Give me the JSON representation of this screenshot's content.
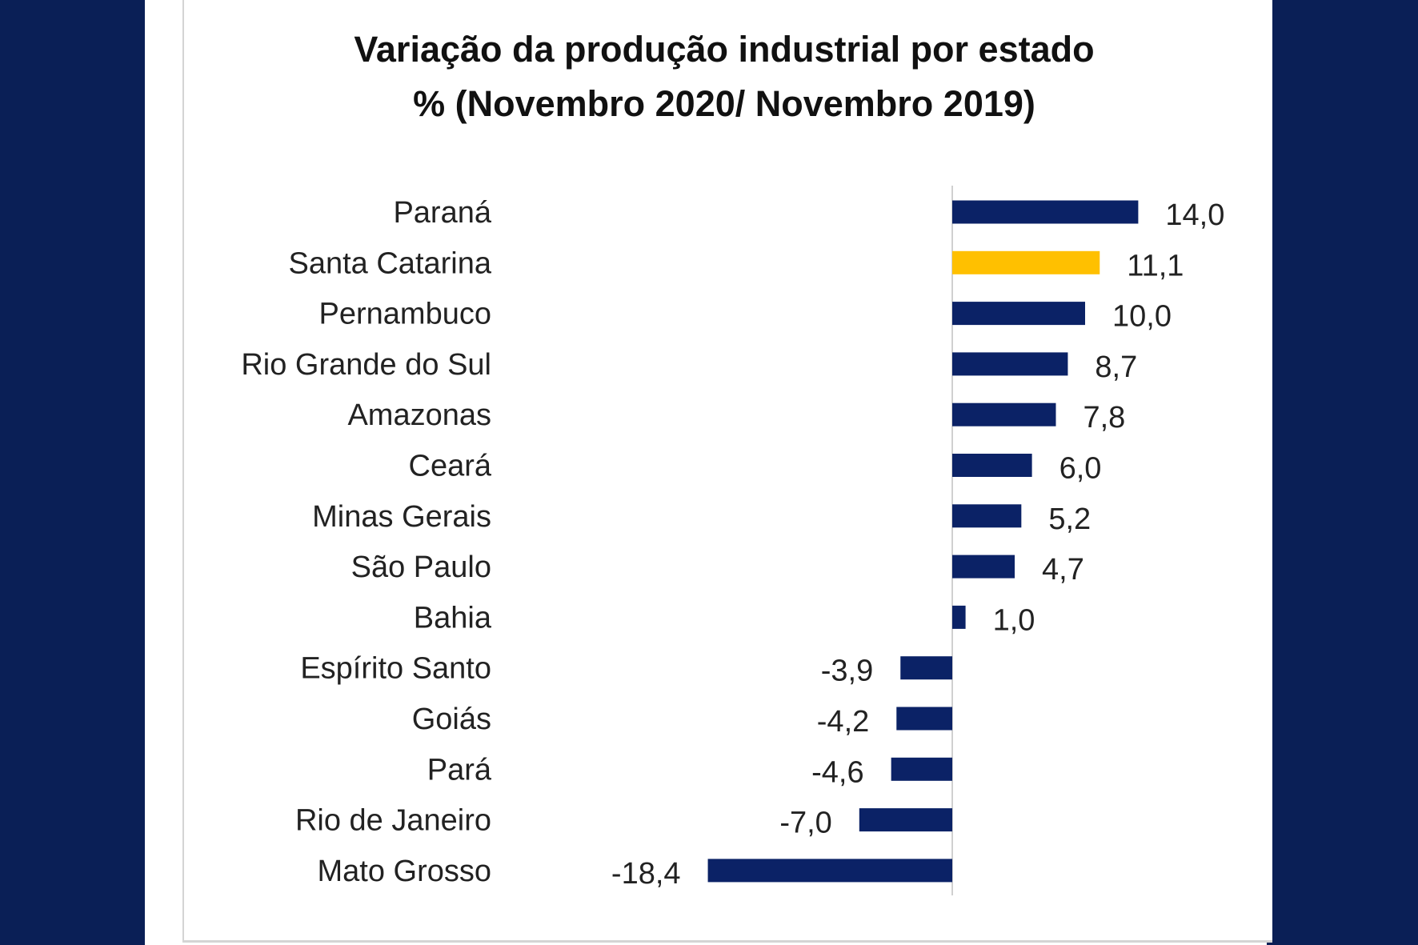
{
  "chart_data": {
    "type": "bar",
    "orientation": "horizontal",
    "title": "Variação da produção industrial por estado",
    "subtitle": "% (Novembro 2020/ Novembro 2019)",
    "categories": [
      "Paraná",
      "Santa Catarina",
      "Pernambuco",
      "Rio Grande do Sul",
      "Amazonas",
      "Ceará",
      "Minas Gerais",
      "São Paulo",
      "Bahia",
      "Espírito Santo",
      "Goiás",
      "Pará",
      "Rio de Janeiro",
      "Mato Grosso"
    ],
    "values": [
      14.0,
      11.1,
      10.0,
      8.7,
      7.8,
      6.0,
      5.2,
      4.7,
      1.0,
      -3.9,
      -4.2,
      -4.6,
      -7.0,
      -18.4
    ],
    "value_labels": [
      "14,0",
      "11,1",
      "10,0",
      "8,7",
      "7,8",
      "6,0",
      "5,2",
      "4,7",
      "1,0",
      "-3,9",
      "-4,2",
      "-4,6",
      "-7,0",
      "-18,4"
    ],
    "highlight_category": "Santa Catarina",
    "colors": {
      "bar": "#0b2266",
      "highlight": "#ffc000",
      "background": "#0a1f56"
    },
    "grid": false,
    "legend": "none"
  }
}
